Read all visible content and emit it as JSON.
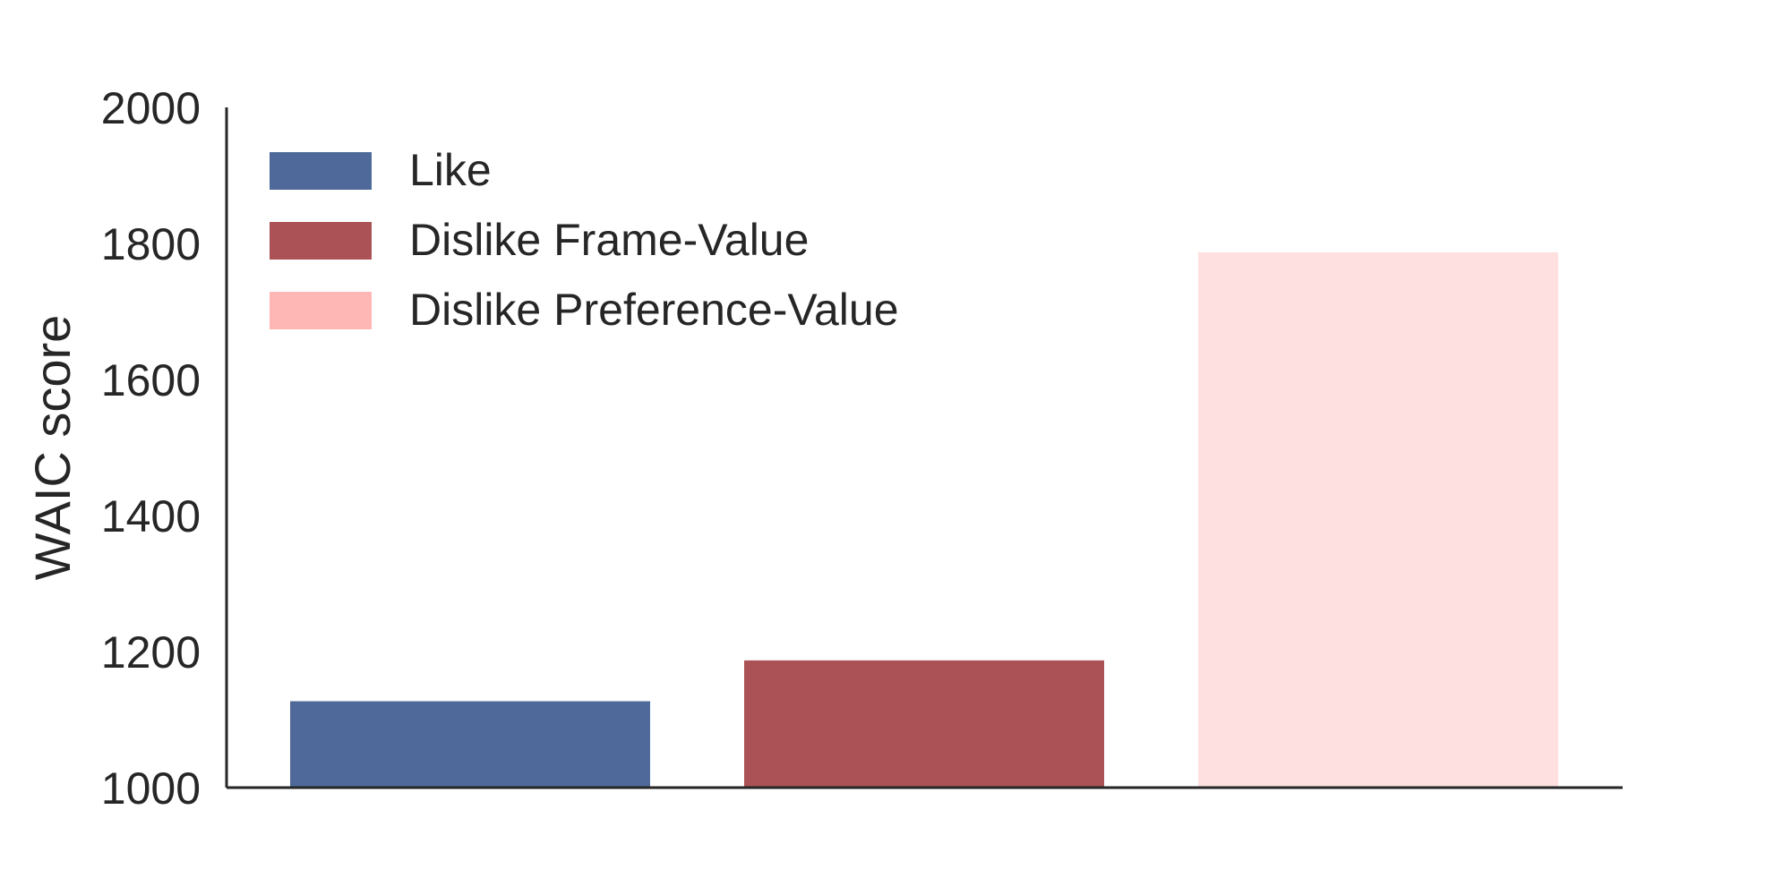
{
  "chart_data": {
    "type": "bar",
    "title": "",
    "xlabel": "",
    "ylabel": "WAIC score",
    "ylim": [
      1000,
      2000
    ],
    "yticks": [
      1000,
      1200,
      1400,
      1600,
      1800,
      2000
    ],
    "grid": false,
    "legend_position": "top-left",
    "series": [
      {
        "name": "Like",
        "value": 1127,
        "color": "#4f6a9a"
      },
      {
        "name": "Dislike Frame-Value",
        "value": 1187,
        "color": "#ab5256"
      },
      {
        "name": "Dislike Preference-Value",
        "value": 1787,
        "color": "#fde0df"
      }
    ],
    "legend_colors": [
      "#4f6a9a",
      "#ab5256",
      "#ffb7b5"
    ]
  }
}
